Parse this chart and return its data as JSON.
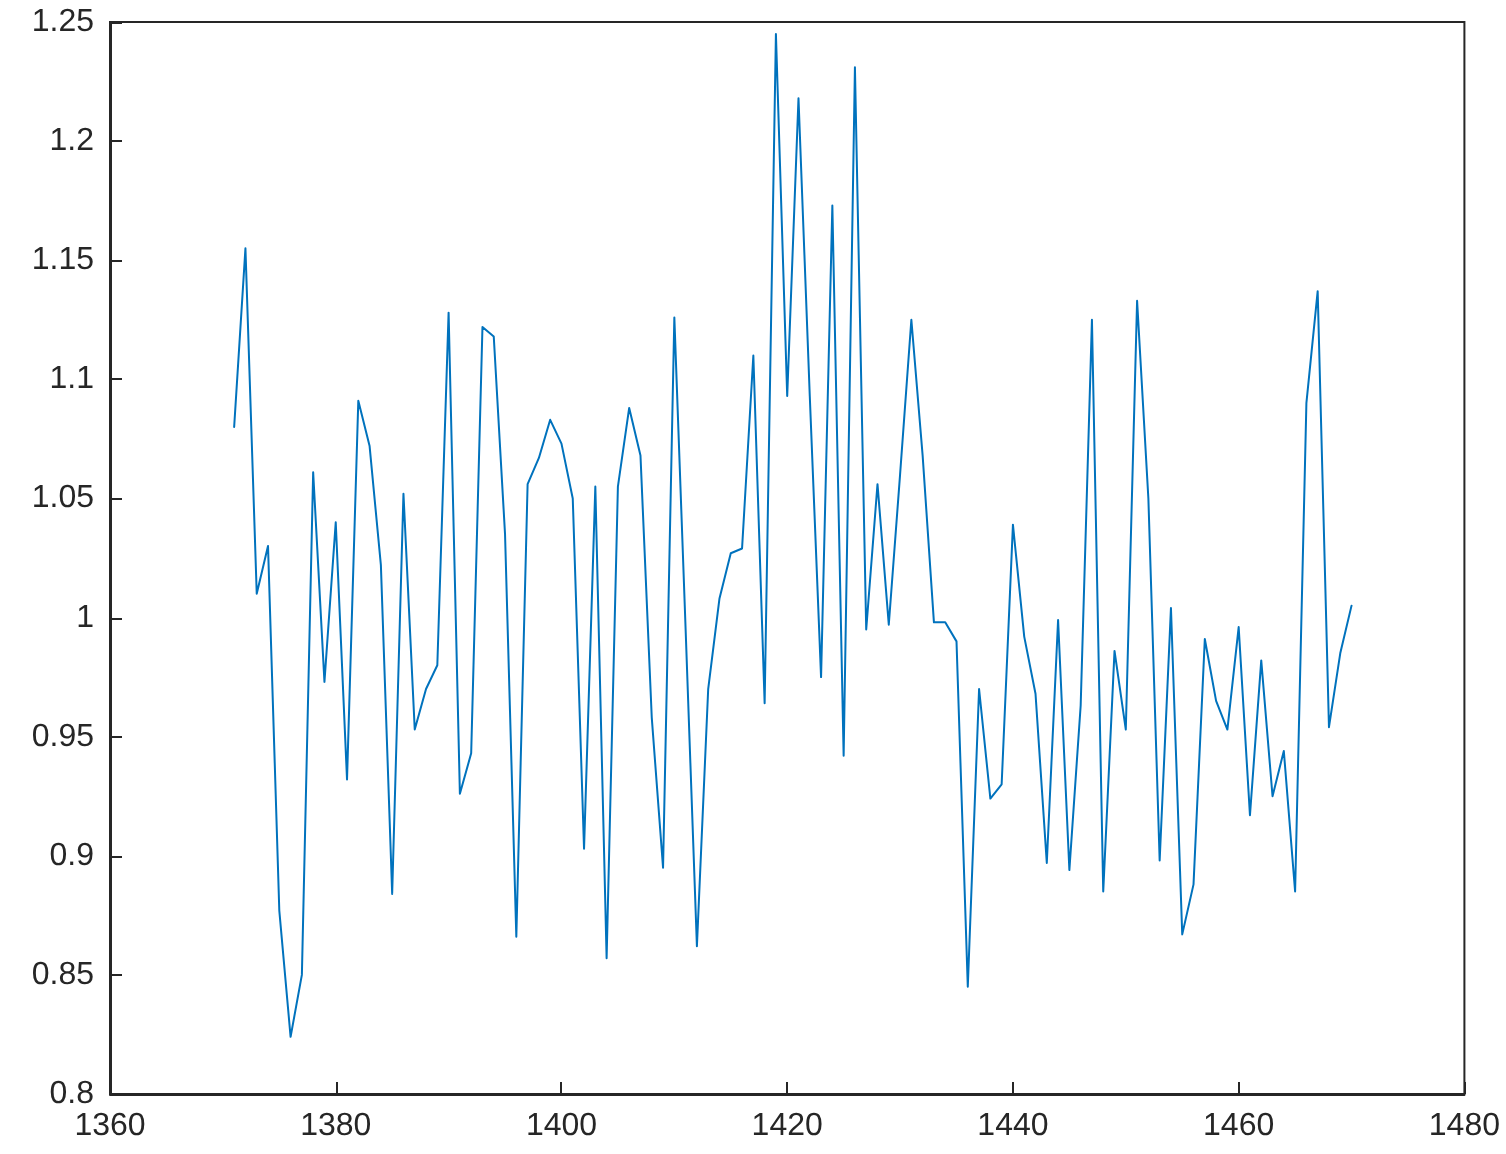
{
  "chart_data": {
    "type": "line",
    "grid": false,
    "marker": "none",
    "line_style": "solid",
    "xlim": [
      1360,
      1480
    ],
    "xticks": [
      1360,
      1380,
      1400,
      1420,
      1440,
      1460,
      1480
    ],
    "ylim": [
      0.8,
      1.25
    ],
    "yticks": [
      0.8,
      0.85,
      0.9,
      0.95,
      1,
      1.05,
      1.1,
      1.15,
      1.2,
      1.25
    ],
    "series": [
      {
        "color": "#0072bd",
        "x": [
          1371,
          1372,
          1373,
          1374,
          1375,
          1376,
          1377,
          1378,
          1379,
          1380,
          1381,
          1382,
          1383,
          1384,
          1385,
          1386,
          1387,
          1388,
          1389,
          1390,
          1391,
          1392,
          1393,
          1394,
          1395,
          1396,
          1397,
          1398,
          1399,
          1400,
          1401,
          1402,
          1403,
          1404,
          1405,
          1406,
          1407,
          1408,
          1409,
          1410,
          1411,
          1412,
          1413,
          1414,
          1415,
          1416,
          1417,
          1418,
          1419,
          1420,
          1421,
          1422,
          1423,
          1424,
          1425,
          1426,
          1427,
          1428,
          1429,
          1430,
          1431,
          1432,
          1433,
          1434,
          1435,
          1436,
          1437,
          1438,
          1439,
          1440,
          1441,
          1442,
          1443,
          1444,
          1445,
          1446,
          1447,
          1448,
          1449,
          1450,
          1451,
          1452,
          1453,
          1454,
          1455,
          1456,
          1457,
          1458,
          1459,
          1460,
          1461,
          1462,
          1463,
          1464,
          1465,
          1466,
          1467,
          1468,
          1469,
          1470
        ],
        "values": [
          1.08,
          1.155,
          1.01,
          1.03,
          0.877,
          0.824,
          0.85,
          1.061,
          0.973,
          1.04,
          0.932,
          1.091,
          1.072,
          1.022,
          0.884,
          1.052,
          0.953,
          0.97,
          0.98,
          1.128,
          0.926,
          0.943,
          1.122,
          1.118,
          1.035,
          0.866,
          1.056,
          1.067,
          1.083,
          1.073,
          1.05,
          0.903,
          1.055,
          0.857,
          1.055,
          1.088,
          1.068,
          0.958,
          0.895,
          1.126,
          0.995,
          0.862,
          0.97,
          1.008,
          1.027,
          1.029,
          1.11,
          0.964,
          1.245,
          1.093,
          1.218,
          1.093,
          0.975,
          1.173,
          0.942,
          1.231,
          0.995,
          1.056,
          0.997,
          1.06,
          1.125,
          1.068,
          0.998,
          0.998,
          0.99,
          0.845,
          0.97,
          0.924,
          0.93,
          1.039,
          0.992,
          0.968,
          0.897,
          0.999,
          0.894,
          0.963,
          1.125,
          0.885,
          0.986,
          0.953,
          1.133,
          1.05,
          0.898,
          1.004,
          0.867,
          0.888,
          0.991,
          0.965,
          0.953,
          0.996,
          0.917,
          0.982,
          0.925,
          0.944,
          0.885,
          1.09,
          1.137,
          0.954,
          0.985,
          1.005
        ]
      }
    ]
  }
}
